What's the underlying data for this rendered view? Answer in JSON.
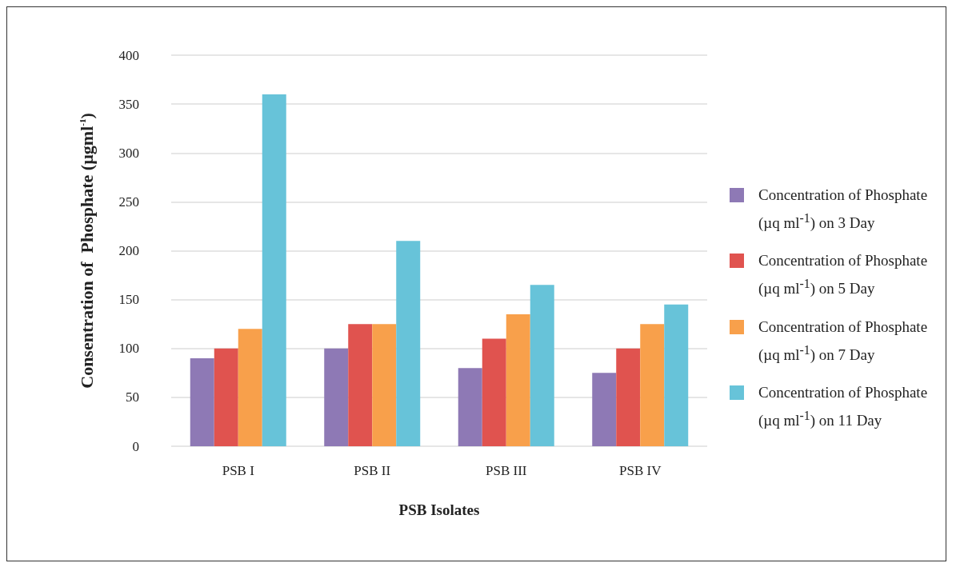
{
  "chart_data": {
    "type": "bar",
    "xlabel": "PSB Isolates",
    "ylabel": "Consentration of  Phosphate (µgml$^{-1}$)",
    "categories": [
      "PSB I",
      "PSB II",
      "PSB III",
      "PSB IV"
    ],
    "series": [
      {
        "name": "Concentration of Phosphate (µq ml$^{-1}$) on 3 Day",
        "color": "#8e79b5",
        "values": [
          90,
          100,
          80,
          75
        ]
      },
      {
        "name": "Concentration of Phosphate (µq ml$^{-1}$) on 5 Day",
        "color": "#e0534f",
        "values": [
          100,
          125,
          110,
          100
        ]
      },
      {
        "name": "Concentration of Phosphate (µq ml$^{-1}$) on 7 Day",
        "color": "#f8a04b",
        "values": [
          120,
          125,
          135,
          125
        ]
      },
      {
        "name": "Concentration of Phosphate (µq ml$^{-1}$) on 11 Day",
        "color": "#67c3d9",
        "values": [
          360,
          210,
          165,
          145
        ]
      }
    ],
    "ylim": [
      0,
      400
    ],
    "yticks": [
      0,
      50,
      100,
      150,
      200,
      250,
      300,
      350,
      400
    ],
    "grid": "y",
    "legend": "right"
  }
}
